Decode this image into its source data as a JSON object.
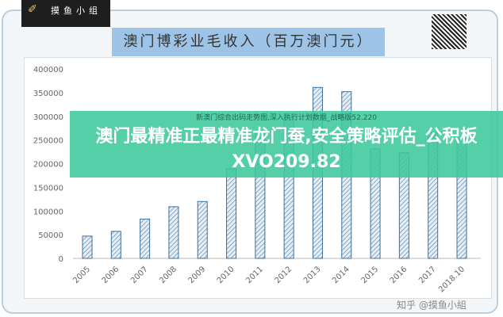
{
  "logo": {
    "text": "摸鱼小组"
  },
  "header": {
    "title": "澳门博彩业毛收入（百万澳门元）"
  },
  "banner": {
    "headline": "澳门最精准正最精准龙门蚕,安全策略评估_公积板XVO209.82",
    "subtitle": "新澳门综合出码走势图,深入执行计划数据_战略版52.220"
  },
  "watermark": "知乎 @摸鱼小組",
  "colors": {
    "bar_fill": "#dbe8f3",
    "bar_stroke": "#3f6f96",
    "banner": "#3cc89b",
    "title_bg": "#9dc3e6"
  },
  "chart_data": {
    "type": "bar",
    "title": "澳门博彩业毛收入（百万澳门元）",
    "categories": [
      "2005",
      "2006",
      "2007",
      "2008",
      "2009",
      "2010",
      "2011",
      "2012",
      "2013",
      "2014",
      "2015",
      "2016",
      "2017",
      "2018.10"
    ],
    "values": [
      47000,
      57000,
      83000,
      109000,
      120000,
      189000,
      268000,
      305000,
      361000,
      352000,
      231000,
      223000,
      266000,
      252000
    ],
    "ylim": [
      0,
      400000
    ],
    "yticks": [
      "0",
      "50000",
      "100000",
      "150000",
      "200000",
      "250000",
      "300000",
      "350000",
      "400000"
    ],
    "grid": false,
    "bar_pattern": "hatched"
  }
}
